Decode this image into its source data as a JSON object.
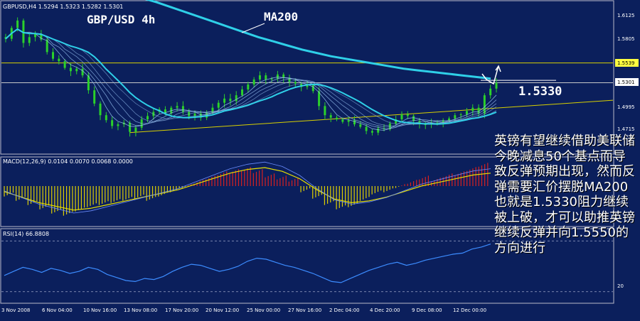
{
  "chart_data": [
    {
      "type": "candlestick",
      "panel": "price",
      "symbol_header": "GBPUSD,H4  1.5294 1.5323 1.5282 1.5301",
      "title": "GBP/USD 4h",
      "ma_label": "MA200",
      "level_label": "1.5330",
      "price_ticks": [
        "1.6125",
        "1.5805",
        "1.5539",
        "1.5301",
        "1.4995",
        "1.4715"
      ],
      "highlight_levels": [
        "1.5539",
        "1.5301"
      ],
      "ylim": [
        1.445,
        1.628
      ],
      "close_series": [
        1.583,
        1.596,
        1.605,
        1.578,
        1.585,
        1.589,
        1.582,
        1.567,
        1.559,
        1.556,
        1.548,
        1.544,
        1.547,
        1.539,
        1.521,
        1.505,
        1.491,
        1.485,
        1.478,
        1.48,
        1.482,
        1.471,
        1.476,
        1.486,
        1.49,
        1.495,
        1.498,
        1.493,
        1.5,
        1.502,
        1.495,
        1.49,
        1.493,
        1.488,
        1.494,
        1.5,
        1.506,
        1.511,
        1.508,
        1.515,
        1.522,
        1.528,
        1.534,
        1.539,
        1.534,
        1.535,
        1.54,
        1.536,
        1.531,
        1.529,
        1.525,
        1.527,
        1.52,
        1.502,
        1.491,
        1.488,
        1.486,
        1.483,
        1.485,
        1.48,
        1.477,
        1.472,
        1.47,
        1.475,
        1.474,
        1.481,
        1.486,
        1.492,
        1.49,
        1.484,
        1.48,
        1.48,
        1.482,
        1.482,
        1.485,
        1.487,
        1.491,
        1.492,
        1.496,
        1.5,
        1.493,
        1.515,
        1.523,
        1.53
      ],
      "ma200_series": [
        1.632,
        1.627,
        1.621,
        1.615,
        1.609,
        1.603,
        1.597,
        1.591,
        1.585,
        1.58,
        1.575,
        1.57,
        1.566,
        1.562,
        1.559,
        1.556,
        1.553,
        1.55,
        1.547,
        1.545,
        1.543,
        1.541,
        1.539,
        1.537,
        1.535
      ],
      "annotations": [
        {
          "kind": "hline",
          "price": 1.5539,
          "color": "#d8d000"
        },
        {
          "kind": "hline",
          "price": 1.5301,
          "color": "#c8c8c8"
        },
        {
          "kind": "hline",
          "price": 1.533,
          "color": "#ffffff"
        },
        {
          "kind": "trendline",
          "from": [
            0.0,
            1.47
          ],
          "to": [
            1.0,
            1.509
          ],
          "color": "#d8d000"
        }
      ]
    },
    {
      "type": "bar+line",
      "panel": "macd",
      "header": "MACD(12,26,9) 0.0104 0.0070 0.0068 0.0000",
      "histogram": [
        -0.004,
        -0.006,
        -0.008,
        -0.01,
        -0.012,
        -0.013,
        -0.011,
        -0.009,
        -0.008,
        -0.007,
        -0.006,
        -0.005,
        -0.006,
        -0.004,
        -0.002,
        0.0,
        0.002,
        0.004,
        0.006,
        0.007,
        0.008,
        0.007,
        0.005,
        0.004,
        0.003,
        -0.002,
        -0.005,
        -0.008,
        -0.01,
        -0.009,
        -0.006,
        -0.003,
        -0.002,
        0.0,
        0.002,
        0.004,
        0.003,
        0.005,
        0.006,
        0.008,
        0.01
      ],
      "signal": [
        -0.003,
        -0.006,
        -0.009,
        -0.011,
        -0.013,
        -0.012,
        -0.01,
        -0.008,
        -0.006,
        -0.004,
        -0.002,
        0.001,
        0.004,
        0.007,
        0.009,
        0.01,
        0.008,
        0.004,
        -0.002,
        -0.007,
        -0.009,
        -0.008,
        -0.006,
        -0.003,
        0.0,
        0.002,
        0.004,
        0.006,
        0.007
      ]
    },
    {
      "type": "line",
      "panel": "rsi",
      "header": "RSI(14) 66.8808",
      "levels": [
        "20"
      ],
      "values": [
        36,
        40,
        44,
        42,
        39,
        43,
        41,
        38,
        40,
        44,
        42,
        37,
        34,
        31,
        30,
        33,
        32,
        35,
        40,
        44,
        47,
        46,
        43,
        40,
        42,
        45,
        50,
        53,
        52,
        49,
        46,
        44,
        41,
        38,
        34,
        30,
        29,
        33,
        37,
        41,
        44,
        47,
        49,
        46,
        48,
        51,
        53,
        55,
        57,
        58,
        62,
        64,
        67
      ]
    }
  ],
  "x_axis_labels": [
    "3 Nov 2008",
    "6 Nov 04:00",
    "10 Nov 16:00",
    "13 Nov 08:00",
    "17 Nov 20:00",
    "20 Nov 12:00",
    "25 Nov 00:00",
    "27 Nov 16:00",
    "2 Dec 04:00",
    "4 Dec 20:00",
    "9 Dec 08:00",
    "12 Dec 00:00"
  ],
  "commentary": "英镑有望继续借助美联储今晚减息50个基点而导致反弹预期出现，然而反弹需要汇价摆脱MA200也就是1.5330阻力继续被上破，才可以助推英镑继续反弹并向1.5550的方向进行",
  "colors": {
    "background": "#0b1f5c",
    "bull": "#2bd12b",
    "ma200": "#2fd0e8",
    "ma_fan": "#8fb8e8",
    "trend": "#d8d000",
    "hist_pos": "#d82020",
    "hist_neg": "#e0d000",
    "rsi": "#3c8cff"
  }
}
